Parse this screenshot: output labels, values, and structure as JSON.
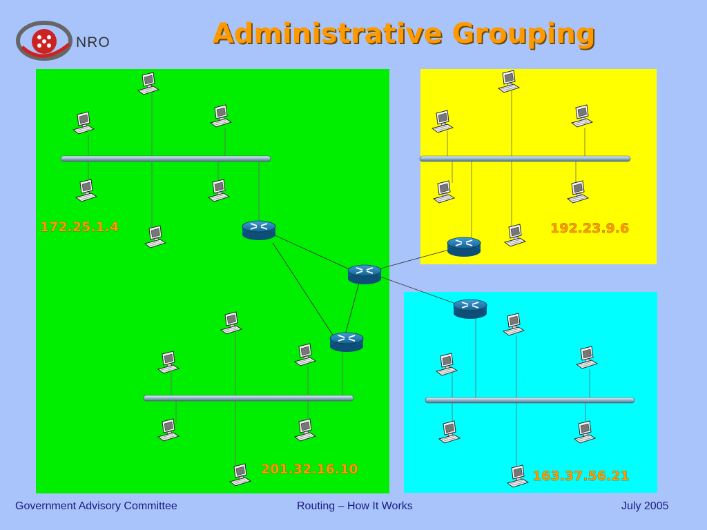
{
  "logo": {
    "text": "NRO",
    "icon": "nro-logo-icon"
  },
  "title": "Administrative Grouping",
  "diagram": {
    "networks": [
      {
        "id": "green",
        "color": "#00ee00",
        "address": "172.25.1.4"
      },
      {
        "id": "yellow",
        "color": "#ffff00",
        "address": "192.23.9.6"
      },
      {
        "id": "cyan",
        "color": "#00ffff",
        "address": "163.37.56.21"
      },
      {
        "id": "green-lower",
        "color": "#00ee00",
        "address": "201.32.16.10"
      }
    ],
    "label_color": "#ff9900",
    "icons": {
      "computer": "desktop-computer-icon",
      "router": "router-icon",
      "bus": "ethernet-bus-icon"
    }
  },
  "footer": {
    "left": "Government Advisory Committee",
    "center": "Routing – How It Works",
    "right": "July 2005"
  }
}
